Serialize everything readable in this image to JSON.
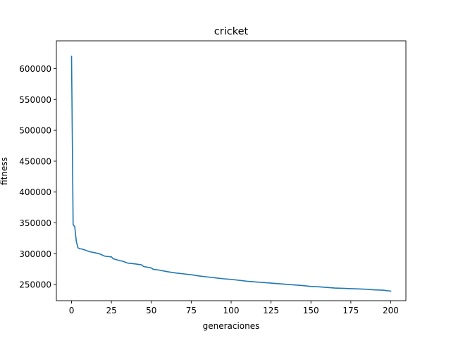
{
  "chart_data": {
    "type": "line",
    "title": "cricket",
    "xlabel": "generaciones",
    "ylabel": "fitness",
    "xlim": [
      -9.5,
      209.5
    ],
    "ylim": [
      224000,
      645000
    ],
    "grid": false,
    "xticks": [
      0,
      25,
      50,
      75,
      100,
      125,
      150,
      175,
      200
    ],
    "xtick_labels": [
      "0",
      "25",
      "50",
      "75",
      "100",
      "125",
      "150",
      "175",
      "200"
    ],
    "yticks": [
      250000,
      300000,
      350000,
      400000,
      450000,
      500000,
      550000,
      600000
    ],
    "ytick_labels": [
      "250000",
      "300000",
      "350000",
      "400000",
      "450000",
      "500000",
      "550000",
      "600000"
    ],
    "series": [
      {
        "name": "fitness",
        "color": "#1f77b4",
        "x": [
          0,
          1,
          2,
          3,
          4,
          5,
          6,
          8,
          10,
          12,
          15,
          18,
          20,
          21,
          25,
          26,
          30,
          32,
          35,
          40,
          44,
          45,
          50,
          51,
          55,
          60,
          65,
          70,
          75,
          80,
          85,
          90,
          95,
          100,
          105,
          110,
          115,
          120,
          125,
          130,
          135,
          140,
          145,
          150,
          155,
          160,
          165,
          170,
          175,
          180,
          185,
          190,
          195,
          200
        ],
        "y": [
          620000,
          347000,
          344000,
          320000,
          310000,
          308000,
          308000,
          306500,
          304500,
          303000,
          301500,
          299500,
          297000,
          296000,
          295000,
          292000,
          289000,
          288000,
          285000,
          283500,
          282000,
          279500,
          277000,
          275000,
          273500,
          271000,
          269000,
          267500,
          266000,
          264000,
          262500,
          261000,
          259500,
          258500,
          257000,
          255500,
          254500,
          253500,
          252500,
          251500,
          250500,
          249500,
          248500,
          247000,
          246500,
          245500,
          244500,
          244000,
          243500,
          243000,
          242500,
          241500,
          241000,
          239500
        ]
      }
    ]
  }
}
